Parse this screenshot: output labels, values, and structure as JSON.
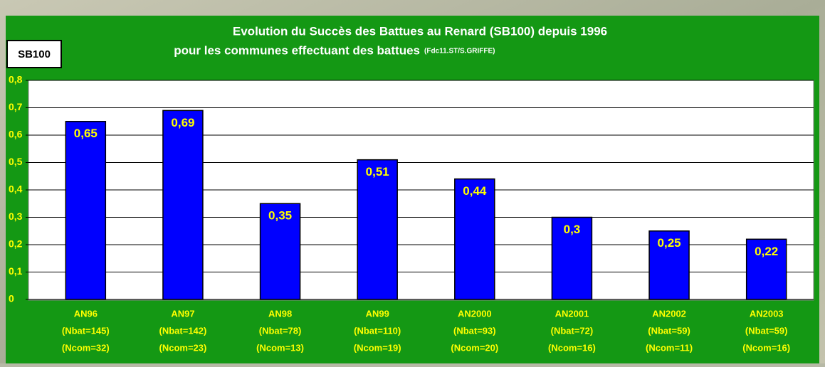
{
  "chart_data": {
    "type": "bar",
    "title": "Evolution  du Succès des Battues au Renard (SB100) depuis 1996",
    "subtitle": "pour les communes effectuant des battues",
    "source": "(Fdc11.ST/S.GRIFFE)",
    "y_label": "SB100",
    "categories": [
      [
        "AN96",
        "(Nbat=145)",
        "(Ncom=32)"
      ],
      [
        "AN97",
        "(Nbat=142)",
        "(Ncom=23)"
      ],
      [
        "AN98",
        "(Nbat=78)",
        "(Ncom=13)"
      ],
      [
        "AN99",
        "(Nbat=110)",
        "(Ncom=19)"
      ],
      [
        "AN2000",
        "(Nbat=93)",
        "(Ncom=20)"
      ],
      [
        "AN2001",
        "(Nbat=72)",
        "(Ncom=16)"
      ],
      [
        "AN2002",
        "(Nbat=59)",
        "(Ncom=11)"
      ],
      [
        "AN2003",
        "(Nbat=59)",
        "(Ncom=16)"
      ]
    ],
    "values": [
      0.65,
      0.69,
      0.35,
      0.51,
      0.44,
      0.3,
      0.25,
      0.22
    ],
    "value_labels": [
      "0,65",
      "0,69",
      "0,35",
      "0,51",
      "0,44",
      "0,3",
      "0,25",
      "0,22"
    ],
    "color": "#0000ff",
    "ylim": [
      0,
      0.8
    ],
    "yticks": [
      0,
      {
        "value": 0.1,
        "label": "0,1"
      },
      {
        "value": 0.2,
        "label": "0,2"
      },
      {
        "value": 0.3,
        "label": "0,3"
      },
      {
        "value": 0.4,
        "label": "0,4"
      },
      {
        "value": 0.5,
        "label": "0,5"
      },
      {
        "value": 0.6,
        "label": "0,6"
      },
      {
        "value": 0.7,
        "label": "0,7"
      },
      {
        "value": 0.8,
        "label": "0,8"
      }
    ],
    "grid": true
  }
}
